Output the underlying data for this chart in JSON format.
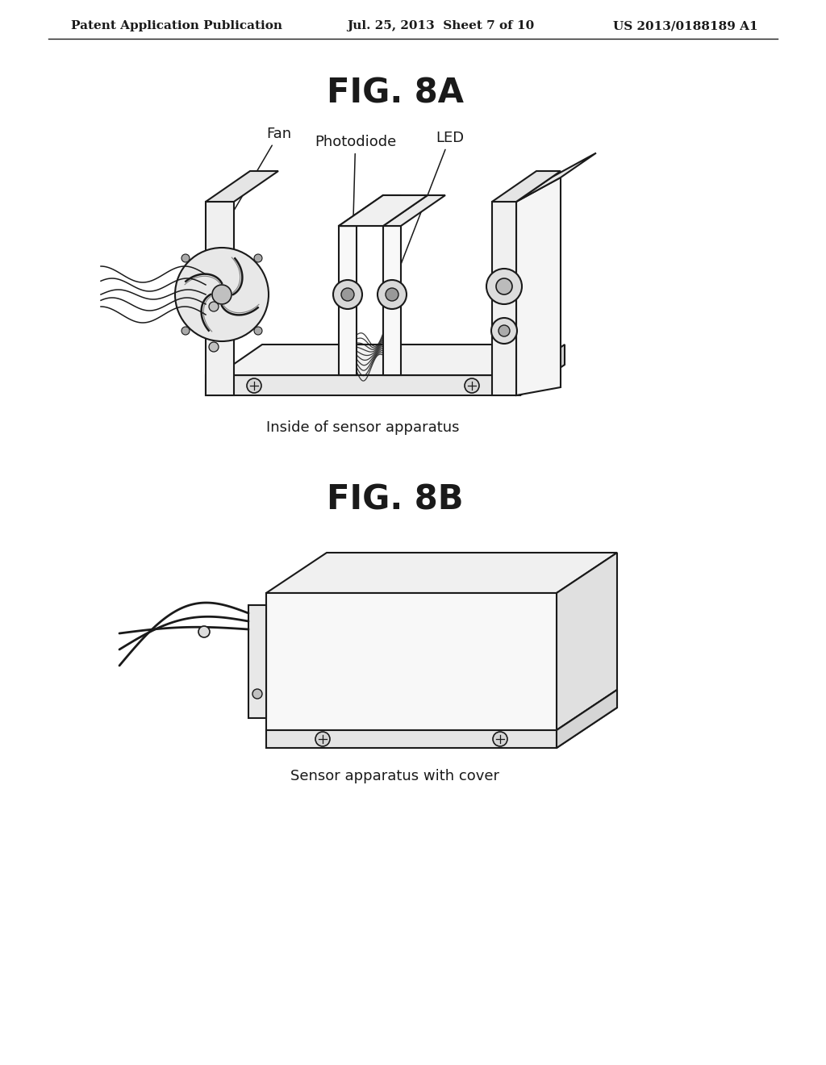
{
  "background_color": "#ffffff",
  "header_left": "Patent Application Publication",
  "header_center": "Jul. 25, 2013  Sheet 7 of 10",
  "header_right": "US 2013/0188189 A1",
  "header_fontsize": 11,
  "fig8a_title": "FIG. 8A",
  "fig8a_title_fontsize": 30,
  "fig8a_caption": "Inside of sensor apparatus",
  "fig8a_caption_fontsize": 13,
  "fig8b_title": "FIG. 8B",
  "fig8b_title_fontsize": 30,
  "fig8b_caption": "Sensor apparatus with cover",
  "fig8b_caption_fontsize": 13,
  "label_fan": "Fan",
  "label_photodiode": "Photodiode",
  "label_led": "LED",
  "line_color": "#1a1a1a",
  "line_width": 1.5,
  "text_color": "#1a1a1a"
}
